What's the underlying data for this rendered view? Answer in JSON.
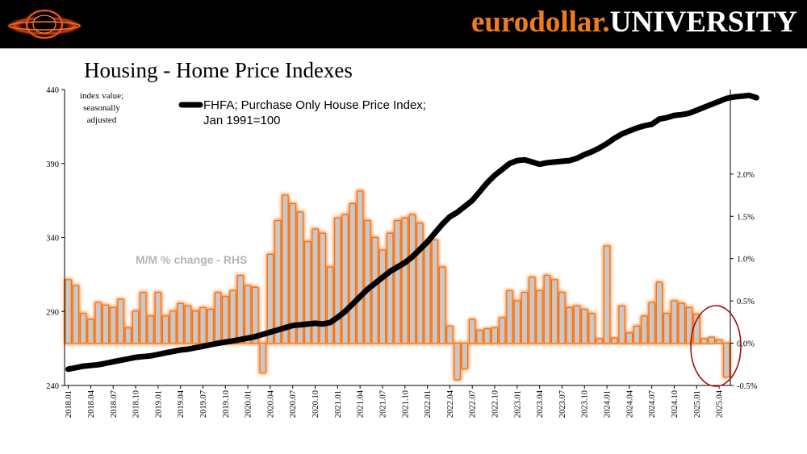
{
  "header": {
    "brand_part1": "eurodollar.",
    "brand_part2": "UNIVERSITY"
  },
  "page_title": "Housing - Home Price Indexes",
  "colors": {
    "brand_orange": "#f07c1f",
    "bar_fill": "#c8c8c8",
    "bar_glow": "#ff6a00",
    "line": "#000000",
    "highlight_circle": "#a01010"
  },
  "chart_data": {
    "type": "bar+line",
    "title": "Housing - Home Price Indexes",
    "left_axis_label": "index value; seasonally adjusted",
    "annotations": {
      "line_label": "FHFA; Purchase Only House Price Index; Jan 1991=100",
      "bar_label": "M/M % change - RHS"
    },
    "left_axis": {
      "min": 240,
      "max": 440,
      "ticks": [
        "240",
        "290",
        "340",
        "390",
        "440"
      ]
    },
    "right_axis": {
      "min": -0.5,
      "max": 3.0,
      "ticks": [
        "-0.5%",
        "0.0%",
        "0.5%",
        "1.0%",
        "1.5%",
        "2.0%"
      ]
    },
    "x_tick_labels": [
      "2018.01",
      "2018.04",
      "2018.07",
      "2018.10",
      "2019.01",
      "2019.04",
      "2019.07",
      "2019.10",
      "2020.01",
      "2020.04",
      "2020.07",
      "2020.10",
      "2021.01",
      "2021.04",
      "2021.07",
      "2021.10",
      "2022.01",
      "2022.04",
      "2022.07",
      "2022.10",
      "2023.01",
      "2023.04",
      "2023.07",
      "2023.10",
      "2024.01",
      "2024.04",
      "2024.07",
      "2024.10",
      "2025.01",
      "2025.04"
    ],
    "series": [
      {
        "name": "FHFA; Purchase Only House Price Index; Jan 1991=100",
        "axis": "left",
        "type": "line",
        "values": [
          251,
          252,
          253,
          253.5,
          254,
          255,
          256,
          257,
          258,
          259,
          259.5,
          260,
          261,
          262,
          263,
          264,
          264.5,
          265.5,
          266.5,
          267.5,
          268.5,
          269.3,
          270.1,
          271,
          272,
          273,
          274.5,
          276,
          277.5,
          279,
          280.5,
          281,
          281.5,
          282,
          281.5,
          282.5,
          286,
          290,
          295,
          300,
          305,
          309,
          313,
          317,
          320,
          323,
          327,
          332,
          337,
          343,
          349,
          354,
          357,
          361,
          365,
          371,
          377,
          382,
          386,
          390,
          392,
          392.5,
          391,
          389.5,
          390.5,
          391,
          391.5,
          392,
          393.5,
          396,
          398,
          400.5,
          403.5,
          407,
          410,
          412,
          414,
          415.5,
          416.5,
          420,
          421,
          422.5,
          423,
          424,
          426,
          428,
          430,
          432,
          434,
          435,
          435.5,
          436,
          434.5
        ]
      },
      {
        "name": "M/M % change - RHS",
        "axis": "right",
        "type": "bar",
        "values": [
          0.75,
          0.68,
          0.35,
          0.28,
          0.48,
          0.45,
          0.42,
          0.52,
          0.18,
          0.38,
          0.6,
          0.32,
          0.6,
          0.32,
          0.38,
          0.47,
          0.44,
          0.38,
          0.42,
          0.4,
          0.6,
          0.55,
          0.62,
          0.8,
          0.68,
          0.66,
          -0.35,
          1.05,
          1.45,
          1.75,
          1.65,
          1.55,
          1.2,
          1.35,
          1.3,
          0.9,
          1.48,
          1.52,
          1.65,
          1.8,
          1.45,
          1.25,
          1.1,
          1.3,
          1.45,
          1.48,
          1.52,
          1.42,
          1.2,
          1.22,
          0.9,
          0.2,
          -0.43,
          -0.3,
          0.28,
          0.15,
          0.17,
          0.18,
          0.3,
          0.62,
          0.5,
          0.6,
          0.78,
          0.62,
          0.8,
          0.75,
          0.6,
          0.42,
          0.44,
          0.4,
          0.35,
          0.05,
          1.15,
          0.06,
          0.44,
          0.12,
          0.2,
          0.32,
          0.48,
          0.72,
          0.35,
          0.5,
          0.47,
          0.42,
          0.34,
          0.05,
          0.07,
          0.04,
          -0.4
        ]
      }
    ]
  }
}
